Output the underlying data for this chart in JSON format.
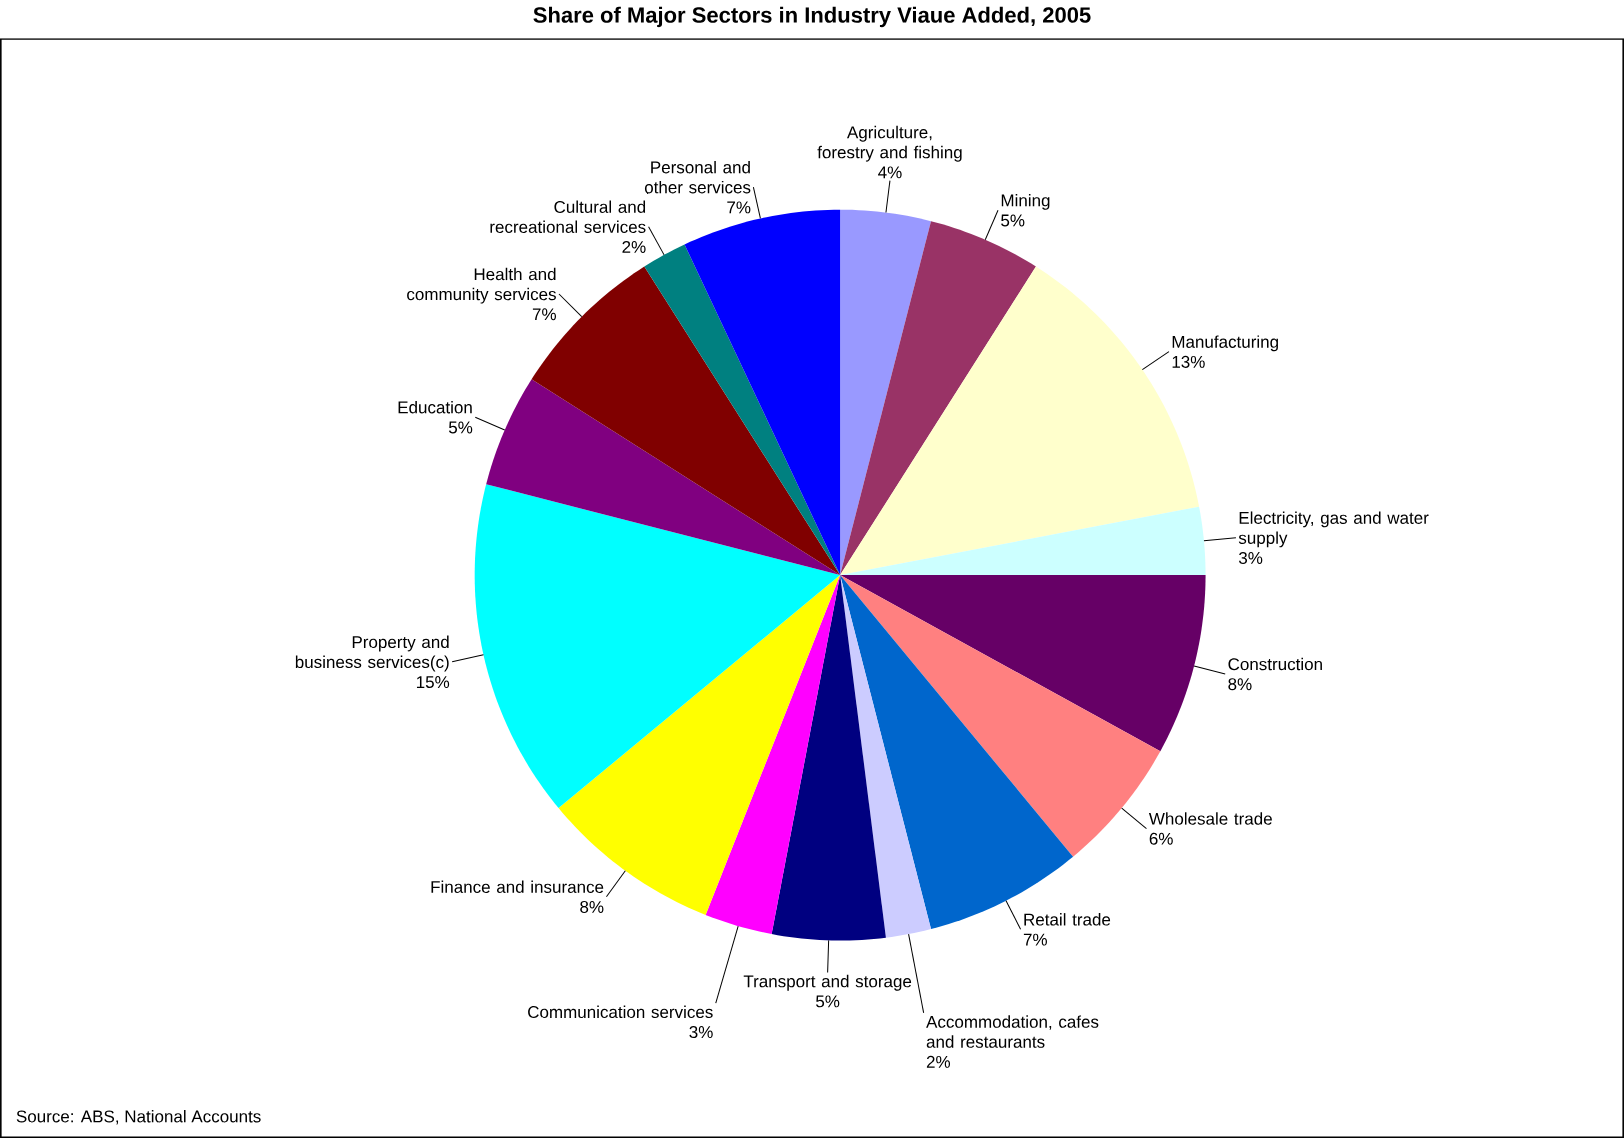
{
  "chart_data": {
    "type": "pie",
    "title": "Share of Major Sectors in Industry Viaue Added, 2005",
    "categories": [
      "Agriculture, forestry and fishing",
      "Mining",
      "Manufacturing",
      "Electricity, gas and water supply",
      "Construction",
      "Wholesale trade",
      "Retail trade",
      "Accommodation, cafes and restaurants",
      "Transport and storage",
      "Communication services",
      "Finance and insurance",
      "Property and business services(c)",
      "Education",
      "Health and community services",
      "Cultural and recreational services",
      "Personal and other services"
    ],
    "values": [
      4,
      5,
      13,
      3,
      8,
      6,
      7,
      2,
      5,
      3,
      8,
      15,
      5,
      7,
      2,
      7
    ],
    "value_labels": [
      "4%",
      "5%",
      "13%",
      "3%",
      "8%",
      "6%",
      "7%",
      "2%",
      "5%",
      "3%",
      "8%",
      "15%",
      "5%",
      "7%",
      "2%",
      "7%"
    ],
    "colors": [
      "#9999ff",
      "#993366",
      "#ffffcc",
      "#ccffff",
      "#660066",
      "#ff8080",
      "#0066cc",
      "#ccccff",
      "#000080",
      "#ff00ff",
      "#ffff00",
      "#00ffff",
      "#800080",
      "#800000",
      "#008080",
      "#0000ff"
    ],
    "annotations": [
      "Source: ABS, National Accounts"
    ]
  }
}
